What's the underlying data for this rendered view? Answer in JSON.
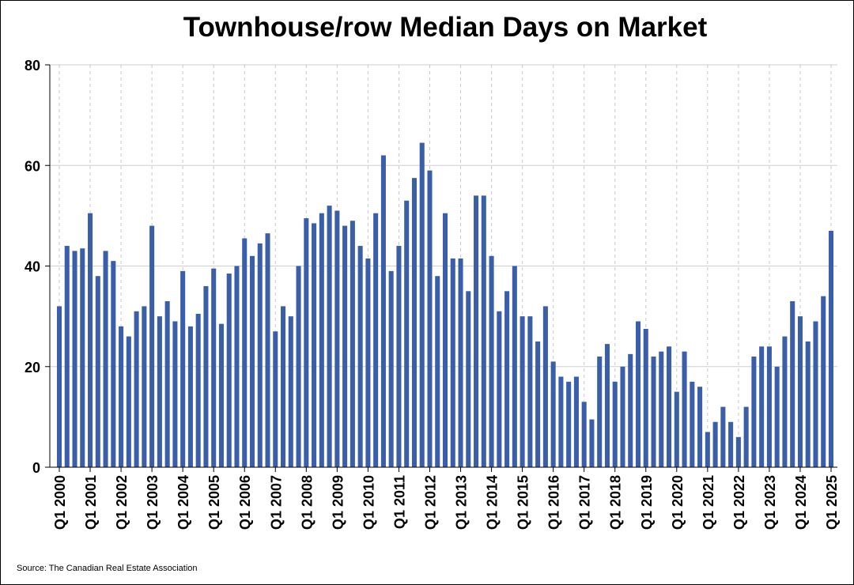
{
  "chart_data": {
    "type": "bar",
    "title": "Townhouse/row Median Days on Market",
    "source": "Source: The Canadian Real Estate Association",
    "xlabel": "",
    "ylabel": "",
    "ylim": [
      0,
      80
    ],
    "yticks": [
      0,
      20,
      40,
      60,
      80
    ],
    "grid": true,
    "bar_color": "#3a5ea8",
    "x_tick_labels": [
      "Q1 2000",
      "Q1 2001",
      "Q1 2002",
      "Q1 2003",
      "Q1 2004",
      "Q1 2005",
      "Q1 2006",
      "Q1 2007",
      "Q1 2008",
      "Q1 2009",
      "Q1 2010",
      "Q1 2011",
      "Q1 2012",
      "Q1 2013",
      "Q1 2014",
      "Q1 2015",
      "Q1 2016",
      "Q1 2017",
      "Q1 2018",
      "Q1 2019",
      "Q1 2020",
      "Q1 2021",
      "Q1 2022",
      "Q1 2023",
      "Q1 2024",
      "Q1 2025"
    ],
    "values": [
      32,
      44,
      43,
      43.5,
      50.5,
      38,
      43,
      41,
      28,
      26,
      31,
      32,
      48,
      30,
      33,
      29,
      39,
      28,
      30.5,
      36,
      39.5,
      28.5,
      38.5,
      40,
      45.5,
      42,
      44.5,
      46.5,
      27,
      32,
      30,
      40,
      49.5,
      48.5,
      50.5,
      52,
      51,
      48,
      49,
      44,
      41.5,
      50.5,
      62,
      39,
      44,
      53,
      57.5,
      64.5,
      59,
      38,
      50.5,
      41.5,
      41.5,
      35,
      54,
      54,
      42,
      31,
      35,
      40,
      30,
      30,
      25,
      32,
      21,
      18,
      17,
      18,
      13,
      9.5,
      22,
      24.5,
      17,
      20,
      22.5,
      29,
      27.5,
      22,
      23,
      24,
      15,
      23,
      17,
      16,
      7,
      9,
      12,
      9,
      6,
      12,
      22,
      24,
      24,
      20,
      26,
      33,
      30,
      25,
      29,
      34,
      47
    ]
  }
}
